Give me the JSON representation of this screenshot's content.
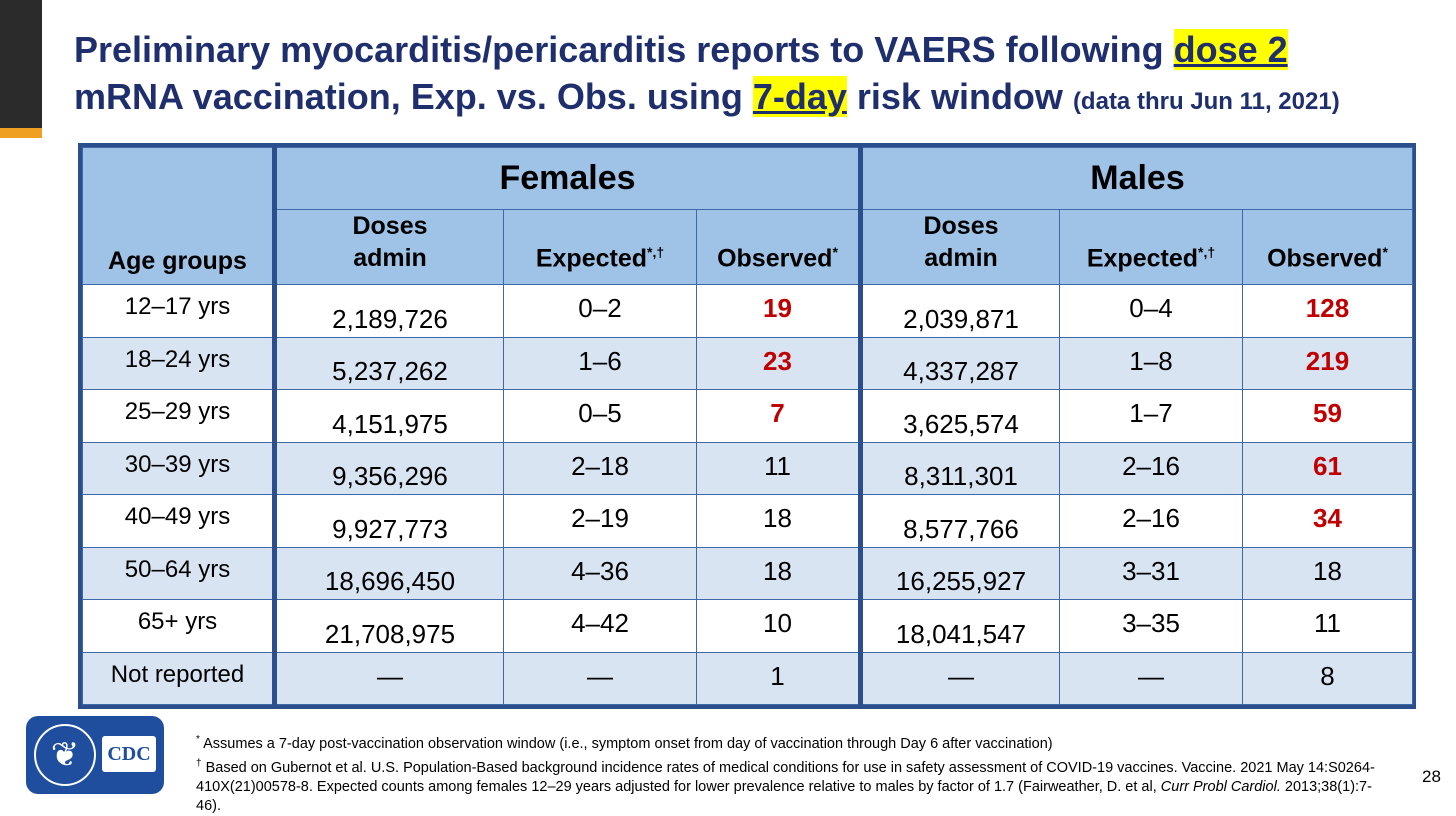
{
  "title": {
    "line1_prefix": "Preliminary myocarditis/pericarditis reports to VAERS following ",
    "line1_highlight": "dose 2",
    "line2_prefix": "mRNA vaccination, Exp. vs. Obs. using ",
    "line2_highlight": "7-day",
    "line2_suffix": " risk window ",
    "line2_small": "(data thru Jun 11, 2021)"
  },
  "colors": {
    "title": "#1f2f6e",
    "highlight": "#ffff00",
    "header_fill": "#9fc3e7",
    "alt_row": "#d9e4f3",
    "border": "#2b4f8c",
    "red_value": "#c00000"
  },
  "table": {
    "age_header": "Age groups",
    "groups": [
      "Females",
      "Males"
    ],
    "col_doses_1": "Doses",
    "col_doses_2": "admin",
    "col_expected": "Expected",
    "col_expected_mark": "*,†",
    "col_observed": "Observed",
    "col_observed_mark": "*",
    "rows": [
      {
        "age": "12–17 yrs",
        "f_doses": "2,189,726",
        "f_exp": "0–2",
        "f_obs": "19",
        "m_doses": "2,039,871",
        "m_exp": "0–4",
        "m_obs": "128"
      },
      {
        "age": "18–24 yrs",
        "f_doses": "5,237,262",
        "f_exp": "1–6",
        "f_obs": "23",
        "m_doses": "4,337,287",
        "m_exp": "1–8",
        "m_obs": "219"
      },
      {
        "age": "25–29 yrs",
        "f_doses": "4,151,975",
        "f_exp": "0–5",
        "f_obs": "7",
        "m_doses": "3,625,574",
        "m_exp": "1–7",
        "m_obs": "59"
      },
      {
        "age": "30–39 yrs",
        "f_doses": "9,356,296",
        "f_exp": "2–18",
        "f_obs": "11",
        "m_doses": "8,311,301",
        "m_exp": "2–16",
        "m_obs": "61"
      },
      {
        "age": "40–49 yrs",
        "f_doses": "9,927,773",
        "f_exp": "2–19",
        "f_obs": "18",
        "m_doses": "8,577,766",
        "m_exp": "2–16",
        "m_obs": "34"
      },
      {
        "age": "50–64 yrs",
        "f_doses": "18,696,450",
        "f_exp": "4–36",
        "f_obs": "18",
        "m_doses": "16,255,927",
        "m_exp": "3–31",
        "m_obs": "18"
      },
      {
        "age": "65+ yrs",
        "f_doses": "21,708,975",
        "f_exp": "4–42",
        "f_obs": "10",
        "m_doses": "18,041,547",
        "m_exp": "3–35",
        "m_obs": "11"
      },
      {
        "age": "Not reported",
        "f_doses": "—",
        "f_exp": "—",
        "f_obs": "1",
        "m_doses": "—",
        "m_exp": "—",
        "m_obs": "8"
      }
    ]
  },
  "logo": {
    "icon": "hhs-eagle-seal-icon",
    "text": "CDC"
  },
  "footnotes": {
    "note1_mark": "*",
    "note1": " Assumes a 7-day post-vaccination observation window (i.e., symptom onset from day of vaccination through Day 6 after vaccination)",
    "note2_mark": "†",
    "note2_a": " Based on Gubernot et al. U.S. Population-Based background incidence rates of medical conditions for use in safety assessment of COVID-19 vaccines. Vaccine. 2021 May 14:S0264-410X(21)00578-8. Expected counts among females 12–29 years adjusted for lower prevalence relative to males by factor of 1.7 (Fairweather, D. et al, ",
    "note2_italic": "Curr Probl Cardiol.",
    "note2_b": " 2013;38(1):7-46)."
  },
  "page_number": "28"
}
